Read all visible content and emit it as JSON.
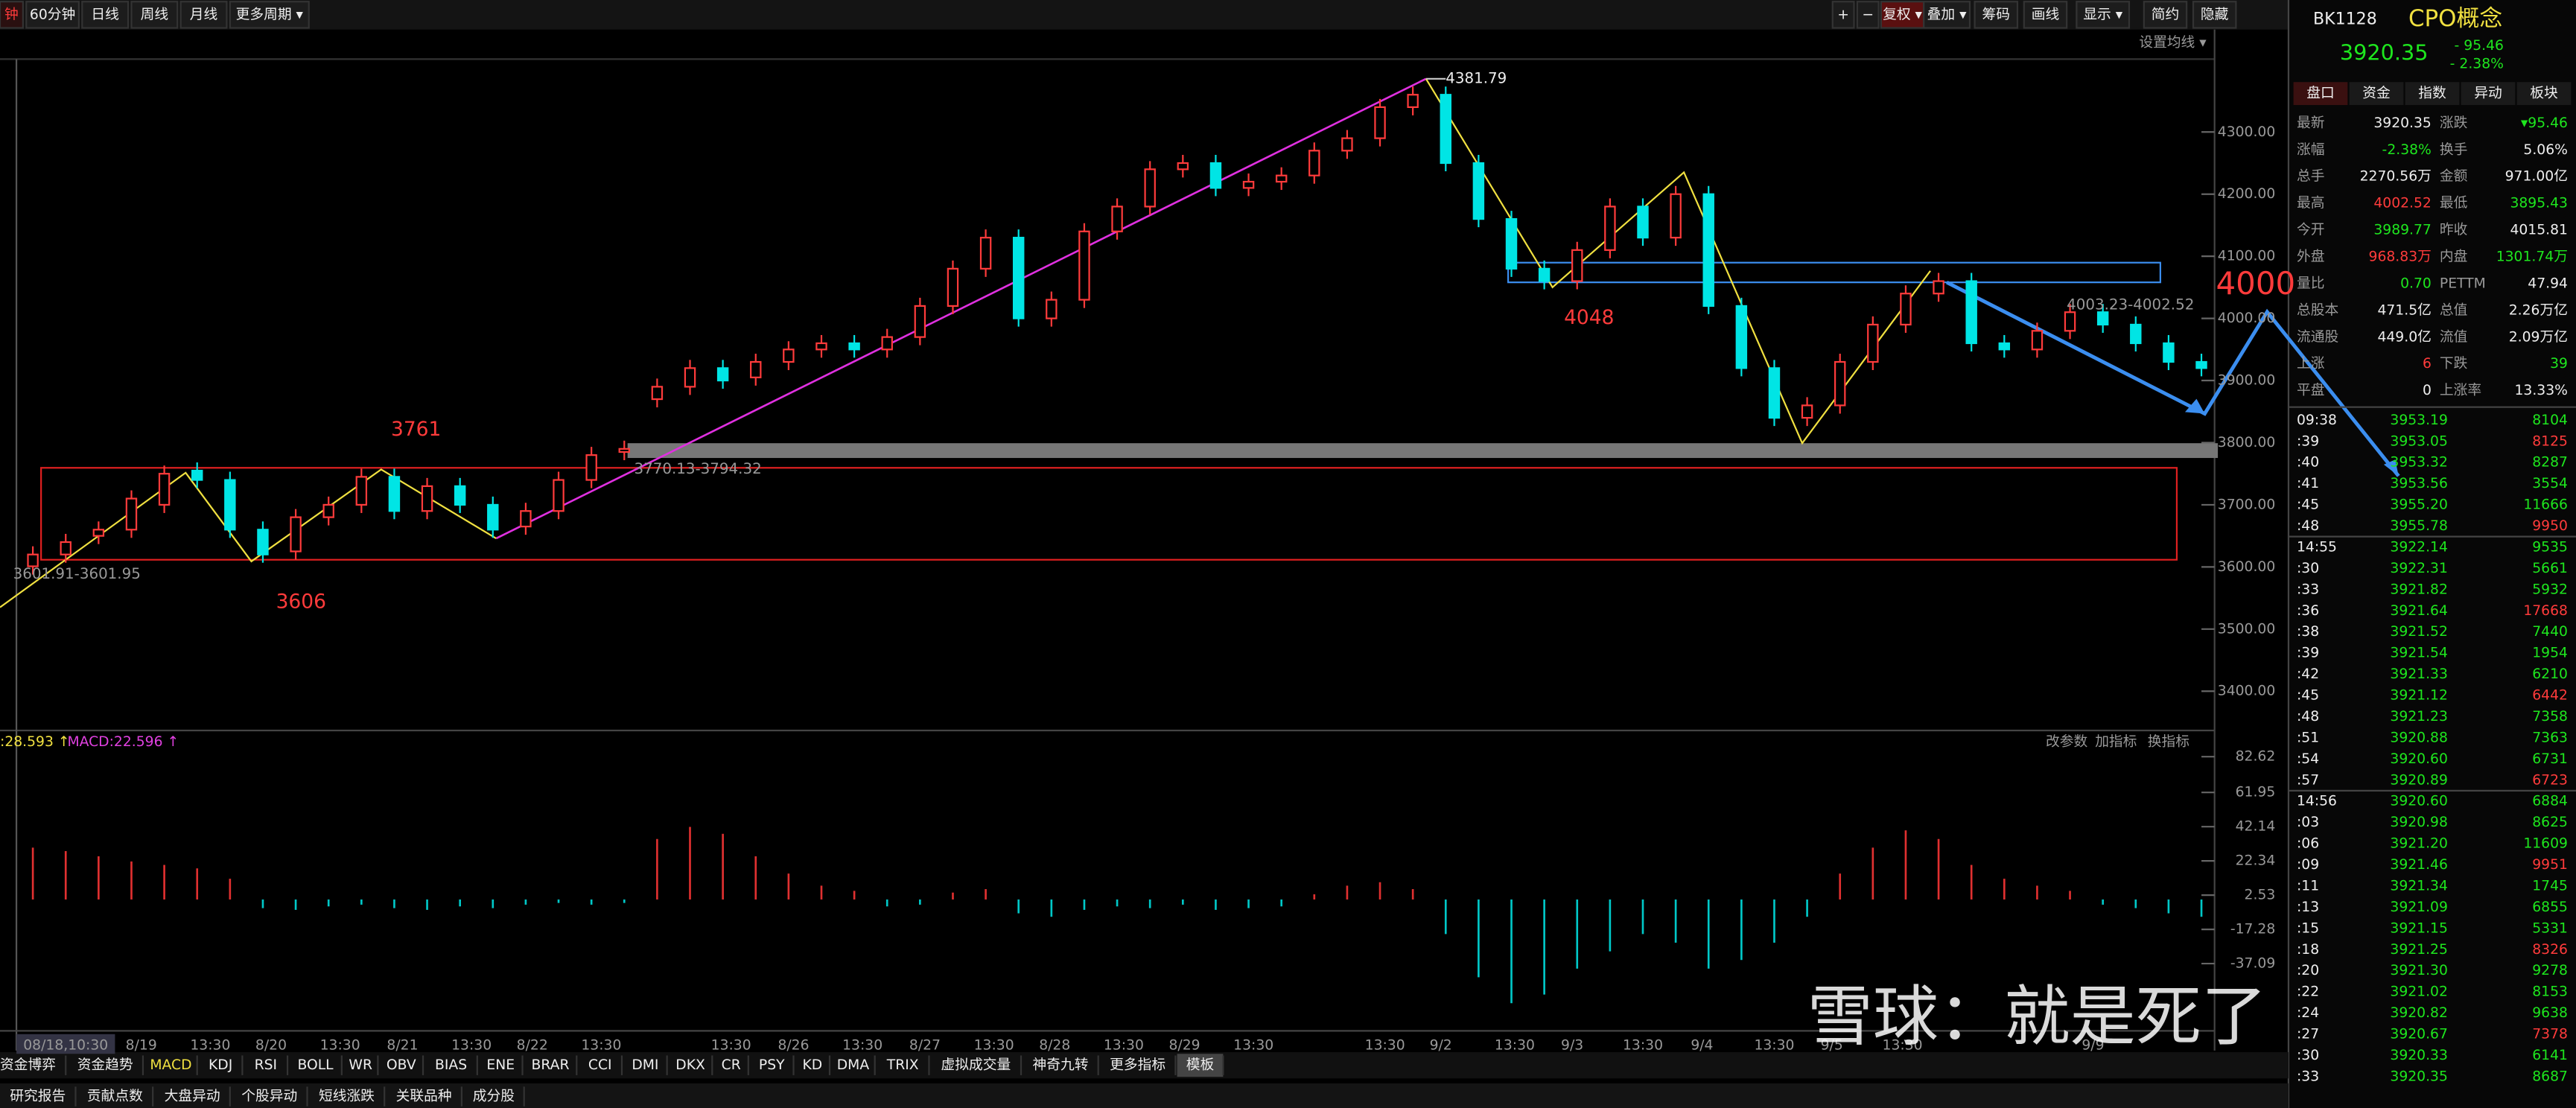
{
  "toolbar": {
    "periods": [
      "钟",
      "60分钟",
      "日线",
      "周线",
      "月线",
      "更多周期 ▾"
    ],
    "tools": [
      "+",
      "−",
      "复权 ▾",
      "叠加 ▾",
      "筹码",
      "画线",
      "显示 ▾",
      "简约",
      "隐藏"
    ],
    "ma_setting": "设置均线 ▾"
  },
  "chart_data": {
    "type": "candlestick",
    "ylim": [
      3350,
      4420
    ],
    "yticks": [
      {
        "value": 4300,
        "label": "4300.00"
      },
      {
        "value": 4200,
        "label": "4200.00"
      },
      {
        "value": 4100,
        "label": "4100.00"
      },
      {
        "value": 4000,
        "label": "4000.00"
      },
      {
        "value": 3900,
        "label": "3900.00"
      },
      {
        "value": 3800,
        "label": "3800.00"
      },
      {
        "value": 3700,
        "label": "3700.00"
      },
      {
        "value": 3600,
        "label": "3600.00"
      },
      {
        "value": 3500,
        "label": "3500.00"
      },
      {
        "value": 3400,
        "label": "3400.00"
      }
    ],
    "candles": [
      [
        3601,
        3620
      ],
      [
        3620,
        3640
      ],
      [
        3650,
        3660
      ],
      [
        3660,
        3710
      ],
      [
        3700,
        3750
      ],
      [
        3755,
        3740
      ],
      [
        3740,
        3660
      ],
      [
        3660,
        3620
      ],
      [
        3625,
        3680
      ],
      [
        3680,
        3700
      ],
      [
        3700,
        3745
      ],
      [
        3745,
        3690
      ],
      [
        3690,
        3730
      ],
      [
        3730,
        3700
      ],
      [
        3700,
        3660
      ],
      [
        3665,
        3690
      ],
      [
        3690,
        3740
      ],
      [
        3740,
        3780
      ],
      [
        3785,
        3790
      ],
      [
        3870,
        3890
      ],
      [
        3890,
        3920
      ],
      [
        3920,
        3900
      ],
      [
        3905,
        3930
      ],
      [
        3930,
        3950
      ],
      [
        3950,
        3960
      ],
      [
        3960,
        3950
      ],
      [
        3950,
        3970
      ],
      [
        3970,
        4020
      ],
      [
        4020,
        4080
      ],
      [
        4080,
        4130
      ],
      [
        4130,
        4000
      ],
      [
        4000,
        4030
      ],
      [
        4030,
        4140
      ],
      [
        4140,
        4180
      ],
      [
        4180,
        4240
      ],
      [
        4240,
        4250
      ],
      [
        4250,
        4210
      ],
      [
        4210,
        4220
      ],
      [
        4220,
        4230
      ],
      [
        4230,
        4270
      ],
      [
        4270,
        4290
      ],
      [
        4290,
        4340
      ],
      [
        4340,
        4360
      ],
      [
        4360,
        4250
      ],
      [
        4250,
        4160
      ],
      [
        4160,
        4080
      ],
      [
        4080,
        4060
      ],
      [
        4060,
        4110
      ],
      [
        4110,
        4180
      ],
      [
        4180,
        4130
      ],
      [
        4130,
        4200
      ],
      [
        4200,
        4020
      ],
      [
        4020,
        3920
      ],
      [
        3920,
        3840
      ],
      [
        3840,
        3860
      ],
      [
        3860,
        3930
      ],
      [
        3930,
        3990
      ],
      [
        3990,
        4040
      ],
      [
        4040,
        4060
      ],
      [
        4060,
        3960
      ],
      [
        3960,
        3950
      ],
      [
        3950,
        3980
      ],
      [
        3980,
        4010
      ],
      [
        4010,
        3990
      ],
      [
        3990,
        3960
      ],
      [
        3960,
        3930
      ],
      [
        3930,
        3920
      ]
    ],
    "annotations": [
      "4381.79",
      "3761",
      "3606",
      "4048",
      "4000",
      "3770.13-3794.32",
      "3601.91-3601.95",
      "4003.23-4002.52"
    ]
  },
  "macd": {
    "dif_label": ":28.593 ↑",
    "macd_label": "MACD:22.596 ↑",
    "buttons": [
      "改参数",
      "加指标",
      "换指标"
    ],
    "ylim": [
      -85.5,
      88.3
    ],
    "yticks": [
      82.62,
      61.95,
      42.14,
      22.34,
      2.53,
      -17.28,
      -37.09
    ],
    "histogram": [
      30,
      28,
      25,
      22,
      20,
      18,
      12,
      -5,
      -6,
      -4,
      -3,
      -5,
      -6,
      -4,
      -5,
      -3,
      -2,
      -3,
      -2,
      35,
      42,
      38,
      25,
      15,
      8,
      5,
      -4,
      -3,
      4,
      6,
      -8,
      -10,
      -6,
      -4,
      -5,
      -3,
      -6,
      -5,
      -4,
      3,
      8,
      10,
      6,
      -20,
      -45,
      -60,
      -55,
      -40,
      -30,
      -20,
      -25,
      -40,
      -35,
      -25,
      -10,
      15,
      30,
      40,
      35,
      20,
      12,
      8,
      5,
      -3,
      -5,
      -8,
      -10
    ]
  },
  "x_labels": [
    "08/18,10:30",
    "8/19",
    "13:30",
    "8/20",
    "13:30",
    "8/21",
    "13:30",
    "8/22",
    "13:30",
    "13:30",
    "8/26",
    "13:30",
    "8/27",
    "13:30",
    "8/28",
    "13:30",
    "8/29",
    "13:30",
    "13:30",
    "9/2",
    "13:30",
    "9/3",
    "13:30",
    "9/4",
    "13:30",
    "9/5",
    "13:30",
    "9/9"
  ],
  "indicator_tabs": [
    "资金博弈",
    "资金趋势",
    "MACD",
    "KDJ",
    "RSI",
    "BOLL",
    "WR",
    "OBV",
    "BIAS",
    "ENE",
    "BRAR",
    "CCI",
    "DMI",
    "DKX",
    "CR",
    "PSY",
    "KD",
    "DMA",
    "TRIX",
    "虚拟成交量",
    "神奇九转",
    "更多指标",
    "模板"
  ],
  "bottom_tabs": [
    "研究报告",
    "贡献点数",
    "大盘异动",
    "个股异动",
    "短线涨跌",
    "关联品种",
    "成分股"
  ],
  "watermark": "雪球：就是死了",
  "quote": {
    "code": "BK1128",
    "name": "CPO概念",
    "price": "3920.35",
    "change": "- 95.46",
    "change_pct": "- 2.38%",
    "tabs": [
      "盘口",
      "资金",
      "指数",
      "异动",
      "板块"
    ],
    "stats": [
      [
        "最新",
        "3920.35",
        "涨跌",
        "▾95.46"
      ],
      [
        "涨幅",
        "-2.38%",
        "换手",
        "5.06%"
      ],
      [
        "总手",
        "2270.56万",
        "金额",
        "971.00亿"
      ],
      [
        "最高",
        "4002.52",
        "最低",
        "3895.43"
      ],
      [
        "今开",
        "3989.77",
        "昨收",
        "4015.81"
      ],
      [
        "外盘",
        "968.83万",
        "内盘",
        "1301.74万"
      ],
      [
        "量比",
        "0.70",
        "PETTM",
        "47.94"
      ],
      [
        "总股本",
        "471.5亿",
        "总值",
        "2.26万亿"
      ],
      [
        "流通股",
        "449.0亿",
        "流值",
        "2.09万亿"
      ],
      [
        "上涨",
        "6",
        "下跌",
        "39"
      ],
      [
        "平盘",
        "0",
        "上涨率",
        "13.33%"
      ]
    ],
    "ticks": [
      [
        "09:38",
        "3953.19",
        "8104"
      ],
      [
        ":39",
        "3953.05",
        "8125"
      ],
      [
        ":40",
        "3953.32",
        "8287"
      ],
      [
        ":41",
        "3953.56",
        "3554"
      ],
      [
        ":45",
        "3955.20",
        "11666"
      ],
      [
        ":48",
        "3955.78",
        "9950"
      ],
      [
        "14:55",
        "3922.14",
        "9535"
      ],
      [
        ":30",
        "3922.31",
        "5661"
      ],
      [
        ":33",
        "3921.82",
        "5932"
      ],
      [
        ":36",
        "3921.64",
        "17668"
      ],
      [
        ":38",
        "3921.52",
        "7440"
      ],
      [
        ":39",
        "3921.54",
        "1954"
      ],
      [
        ":42",
        "3921.33",
        "6210"
      ],
      [
        ":45",
        "3921.12",
        "6442"
      ],
      [
        ":48",
        "3921.23",
        "7358"
      ],
      [
        ":51",
        "3920.88",
        "7363"
      ],
      [
        ":54",
        "3920.60",
        "6731"
      ],
      [
        ":57",
        "3920.89",
        "6723"
      ],
      [
        "14:56",
        "3920.60",
        "6884"
      ],
      [
        ":03",
        "3920.98",
        "8625"
      ],
      [
        ":06",
        "3921.20",
        "11609"
      ],
      [
        ":09",
        "3921.46",
        "9951"
      ],
      [
        ":11",
        "3921.34",
        "1745"
      ],
      [
        ":13",
        "3921.09",
        "6855"
      ],
      [
        ":15",
        "3921.15",
        "5331"
      ],
      [
        ":18",
        "3921.25",
        "8326"
      ],
      [
        ":20",
        "3921.30",
        "9278"
      ],
      [
        ":22",
        "3921.02",
        "8153"
      ],
      [
        ":24",
        "3920.82",
        "9638"
      ],
      [
        ":27",
        "3920.67",
        "7378"
      ],
      [
        ":30",
        "3920.33",
        "6141"
      ],
      [
        ":33",
        "3920.35",
        "8687"
      ]
    ]
  }
}
